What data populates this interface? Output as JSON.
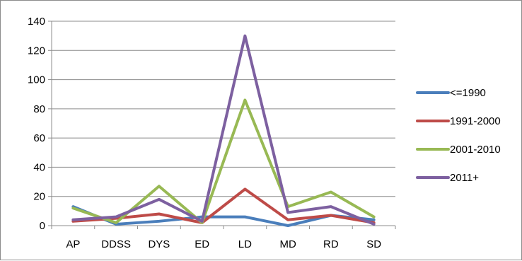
{
  "chart_data": {
    "type": "line",
    "title": "",
    "xlabel": "",
    "ylabel": "",
    "categories": [
      "AP",
      "DDSS",
      "DYS",
      "ED",
      "LD",
      "MD",
      "RD",
      "SD"
    ],
    "ylim": [
      0,
      140
    ],
    "yticks": [
      0,
      20,
      40,
      60,
      80,
      100,
      120,
      140
    ],
    "grid": "horizontal",
    "legend_position": "right",
    "series": [
      {
        "name": "<=1990",
        "color": "#4a7ebb",
        "values": [
          13,
          1,
          3,
          6,
          6,
          0,
          7,
          4
        ]
      },
      {
        "name": "1991-2000",
        "color": "#be4b48",
        "values": [
          3,
          5,
          8,
          2,
          25,
          4,
          7,
          2
        ]
      },
      {
        "name": "2001-2010",
        "color": "#98b954",
        "values": [
          12,
          2,
          27,
          2,
          86,
          13,
          23,
          6
        ]
      },
      {
        "name": "2011+",
        "color": "#7d60a0",
        "values": [
          4,
          6,
          18,
          3,
          130,
          9,
          13,
          1
        ]
      }
    ]
  }
}
